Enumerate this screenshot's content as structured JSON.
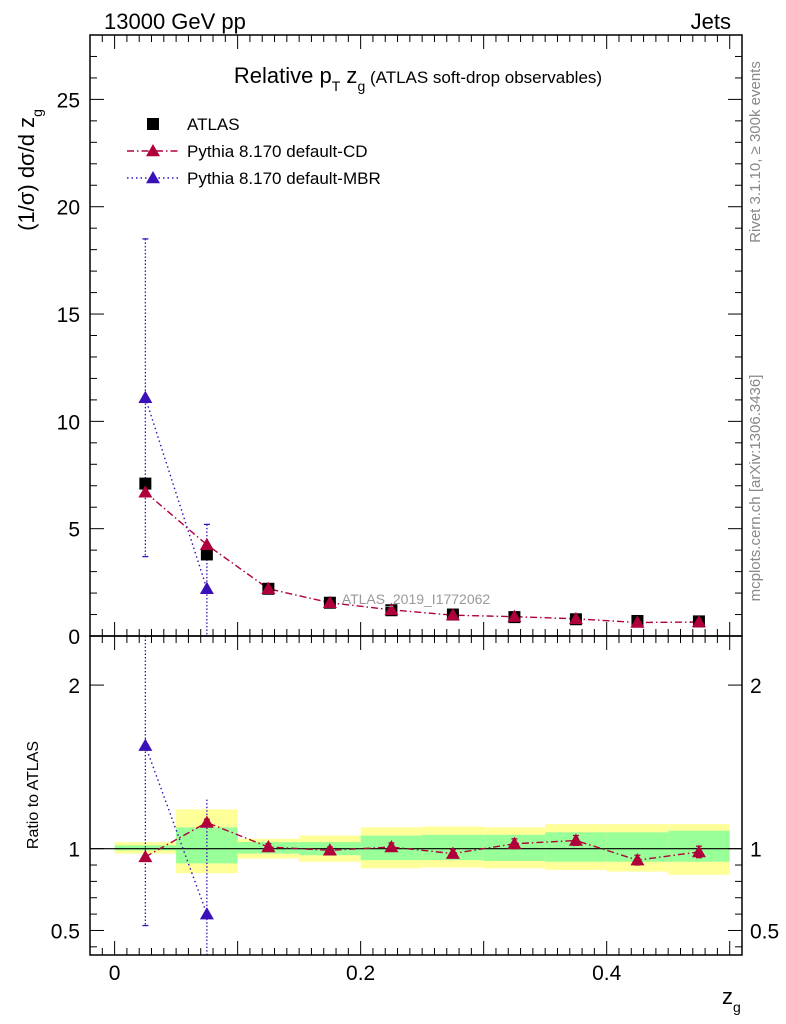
{
  "header": {
    "left": "13000 GeV pp",
    "right": "Jets"
  },
  "side_text": {
    "rivet": "Rivet 3.1.10, ≥ 300k events",
    "mcplots": "mcplots.cern.ch [arXiv:1306.3436]"
  },
  "analysis_label": "ATLAS_2019_I1772062",
  "chart_data": [
    {
      "panel": "main",
      "type": "scatter",
      "title": "Relative p_T z_g (ATLAS soft-drop observables)",
      "ylabel": "(1/σ) dσ/d z_g",
      "xlim": [
        -0.02,
        0.51
      ],
      "ylim": [
        0,
        28
      ],
      "yticks": [
        0,
        5,
        10,
        15,
        20,
        25
      ],
      "legend_placement": "top-left",
      "x": [
        0.025,
        0.075,
        0.125,
        0.175,
        0.225,
        0.275,
        0.325,
        0.375,
        0.425,
        0.475
      ],
      "series": [
        {
          "name": "ATLAS",
          "marker": "square",
          "color": "#000000",
          "values": [
            7.1,
            3.8,
            2.2,
            1.55,
            1.2,
            1.0,
            0.88,
            0.78,
            0.7,
            0.68
          ]
        },
        {
          "name": "Pythia 8.170 default-CD",
          "marker": "triangle",
          "color": "#b0003c",
          "line": "dashdot",
          "values": [
            6.7,
            4.25,
            2.2,
            1.55,
            1.22,
            0.97,
            0.9,
            0.8,
            0.63,
            0.65
          ]
        },
        {
          "name": "Pythia 8.170 default-MBR",
          "marker": "triangle",
          "color": "#3a10b8",
          "line": "dotted",
          "values": [
            11.1,
            2.2
          ],
          "err_low": [
            7.4,
            2.2
          ],
          "err_high": [
            7.4,
            3.0
          ]
        }
      ]
    },
    {
      "panel": "ratio",
      "type": "scatter",
      "ylabel": "Ratio to ATLAS",
      "xlabel": "z_g",
      "xlim": [
        -0.02,
        0.51
      ],
      "ylim": [
        0.35,
        2.3
      ],
      "yticks": [
        0.5,
        1,
        2
      ],
      "xticks": [
        0,
        0.2,
        0.4
      ],
      "bands": {
        "edges": [
          0,
          0.05,
          0.1,
          0.15,
          0.2,
          0.25,
          0.3,
          0.35,
          0.4,
          0.45,
          0.5
        ],
        "yellow_low": [
          0.97,
          0.85,
          0.94,
          0.92,
          0.88,
          0.885,
          0.88,
          0.87,
          0.86,
          0.84
        ],
        "yellow_high": [
          1.04,
          1.24,
          1.06,
          1.08,
          1.13,
          1.135,
          1.13,
          1.15,
          1.15,
          1.15
        ],
        "green_low": [
          0.99,
          0.91,
          0.97,
          0.96,
          0.93,
          0.93,
          0.925,
          0.92,
          0.92,
          0.92
        ],
        "green_high": [
          1.02,
          1.13,
          1.04,
          1.04,
          1.08,
          1.085,
          1.085,
          1.1,
          1.1,
          1.11
        ]
      },
      "series": [
        {
          "name": "Pythia 8.170 default-CD",
          "color": "#b0003c",
          "values": [
            0.95,
            1.16,
            1.01,
            0.99,
            1.01,
            0.97,
            1.03,
            1.05,
            0.93,
            0.98
          ],
          "err": [
            0.0,
            0.02,
            0.02,
            0.02,
            0.025,
            0.025,
            0.03,
            0.03,
            0.03,
            0.035
          ]
        },
        {
          "name": "Pythia 8.170 default-MBR",
          "color": "#3a10b8",
          "values": [
            1.63,
            0.6
          ],
          "err_low": [
            1.1,
            0.3
          ],
          "err_high": [
            1.2,
            0.7
          ]
        }
      ]
    }
  ]
}
